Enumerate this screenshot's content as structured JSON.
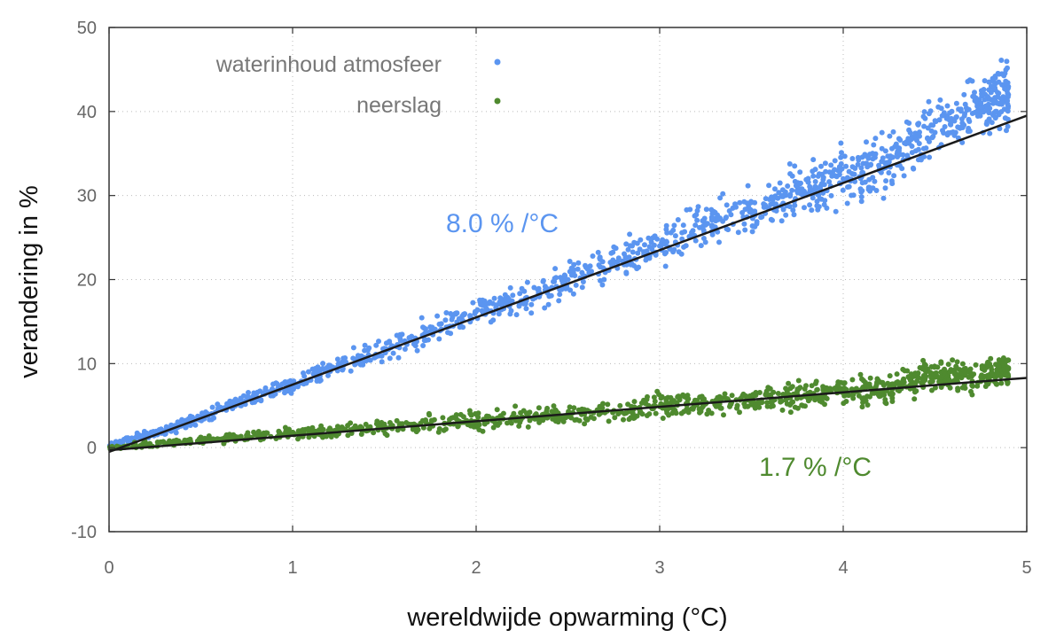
{
  "chart_data": {
    "type": "scatter",
    "title": "",
    "xlabel": "wereldwijde opwarming (°C)",
    "ylabel": "verandering in %",
    "xlim": [
      0,
      5
    ],
    "ylim": [
      -10,
      50
    ],
    "xticks": [
      "0",
      "1",
      "2",
      "3",
      "4",
      "5"
    ],
    "yticks": [
      "-10",
      "0",
      "10",
      "20",
      "30",
      "40",
      "50"
    ],
    "grid": true,
    "legend_position": "top-left",
    "series": [
      {
        "name": "waterinhoud atmosfeer",
        "color": "#5b95f0",
        "slope_per_degC": 8.0,
        "fit_line": [
          [
            0,
            -0.5
          ],
          [
            5,
            39.5
          ]
        ],
        "slope_label": "8.0 % /°C",
        "samples": [
          [
            0.05,
            0.4
          ],
          [
            0.15,
            1.2
          ],
          [
            0.3,
            2.0
          ],
          [
            0.5,
            3.6
          ],
          [
            0.7,
            5.5
          ],
          [
            1.0,
            7.6
          ],
          [
            1.25,
            9.8
          ],
          [
            1.5,
            11.8
          ],
          [
            1.75,
            13.8
          ],
          [
            2.0,
            16.2
          ],
          [
            2.25,
            17.5
          ],
          [
            2.5,
            20.0
          ],
          [
            2.75,
            22.0
          ],
          [
            3.0,
            24.0
          ],
          [
            3.25,
            26.5
          ],
          [
            3.5,
            28.0
          ],
          [
            3.75,
            30.5
          ],
          [
            4.0,
            32.0
          ],
          [
            4.25,
            34.0
          ],
          [
            4.5,
            37.5
          ],
          [
            4.75,
            41.0
          ],
          [
            4.9,
            42.0
          ]
        ]
      },
      {
        "name": "neerslag",
        "color": "#4f8a2f",
        "slope_per_degC": 1.7,
        "fit_line": [
          [
            0,
            -0.3
          ],
          [
            5,
            8.3
          ]
        ],
        "slope_label": "1.7 % /°C",
        "samples": [
          [
            0.05,
            0.0
          ],
          [
            0.2,
            0.4
          ],
          [
            0.5,
            0.9
          ],
          [
            0.75,
            1.3
          ],
          [
            1.0,
            1.7
          ],
          [
            1.25,
            2.0
          ],
          [
            1.5,
            2.4
          ],
          [
            1.75,
            2.8
          ],
          [
            2.0,
            3.1
          ],
          [
            2.25,
            3.6
          ],
          [
            2.5,
            4.0
          ],
          [
            2.75,
            4.4
          ],
          [
            3.0,
            4.9
          ],
          [
            3.25,
            5.2
          ],
          [
            3.5,
            5.8
          ],
          [
            3.75,
            6.3
          ],
          [
            4.0,
            6.7
          ],
          [
            4.25,
            7.1
          ],
          [
            4.45,
            8.5
          ],
          [
            4.75,
            8.4
          ],
          [
            4.9,
            9.5
          ]
        ]
      }
    ]
  }
}
